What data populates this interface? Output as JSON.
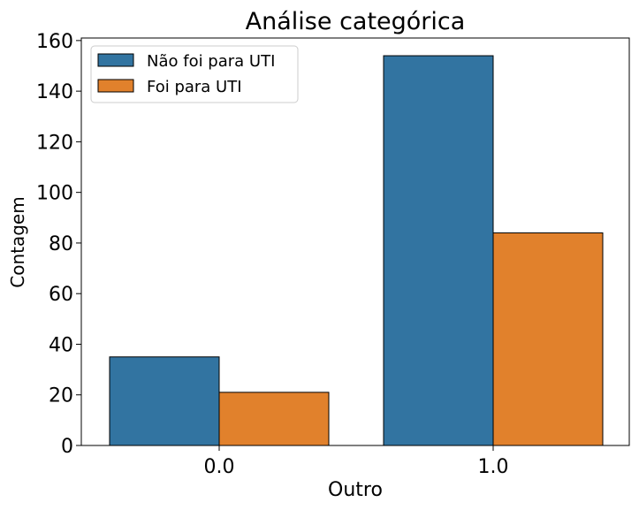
{
  "chart_data": {
    "type": "bar",
    "title": "Análise categórica",
    "xlabel": "Outro",
    "ylabel": "Contagem",
    "categories": [
      "0.0",
      "1.0"
    ],
    "series": [
      {
        "name": "Não foi para UTI",
        "values": [
          35,
          154
        ],
        "color": "#3274a1"
      },
      {
        "name": "Foi para UTI",
        "values": [
          21,
          84
        ],
        "color": "#e1812c"
      }
    ],
    "ylim": [
      0,
      161
    ],
    "yticks": [
      0,
      20,
      40,
      60,
      80,
      100,
      120,
      140,
      160
    ],
    "grid": false,
    "legend": "top-left"
  }
}
